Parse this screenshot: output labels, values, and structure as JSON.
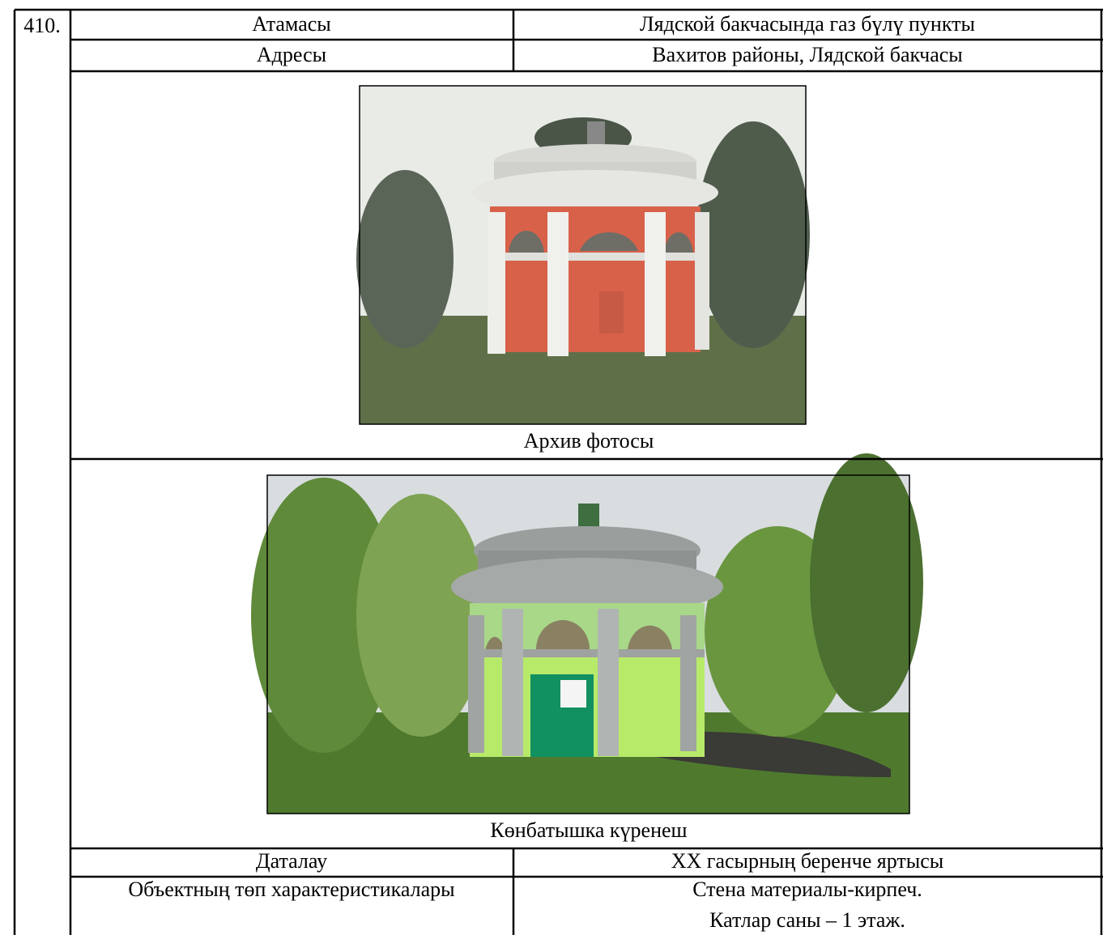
{
  "number": "410.",
  "table": {
    "rows": [
      [
        "Атамасы",
        "Лядской бакчасында газ бүлү пункты"
      ],
      [
        "Адресы",
        "Вахитов районы, Лядской бакчасы"
      ]
    ]
  },
  "photos": [
    {
      "caption": "Архив фотосы"
    },
    {
      "caption": "Көнбатышка күренеш"
    }
  ],
  "details": {
    "rows": [
      [
        "Даталау",
        "XX гасырның беренче яртысы"
      ],
      [
        "Объектның төп характеристикалары",
        [
          "Стена материалы-кирпеч.",
          "Катлар саны – 1 этаж."
        ]
      ]
    ]
  }
}
